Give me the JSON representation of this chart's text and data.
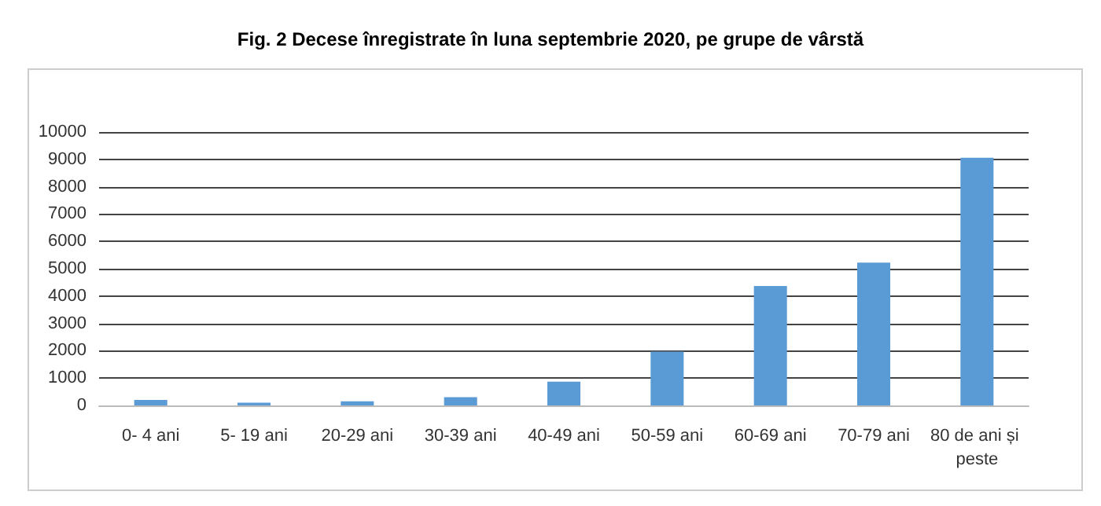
{
  "chart_data": {
    "type": "bar",
    "title": "Fig. 2 Decese înregistrate în luna septembrie 2020, pe grupe de vârstă",
    "categories": [
      "0- 4 ani",
      "5- 19 ani",
      "20-29 ani",
      "30-39 ani",
      "40-49 ani",
      "50-59 ani",
      "60-69 ani",
      "70-79 ani",
      "80 de ani și peste"
    ],
    "values": [
      200,
      100,
      150,
      300,
      870,
      1970,
      4370,
      5220,
      9060
    ],
    "color": "#5b9bd5",
    "ylim": [
      0,
      10000
    ],
    "yticks": [
      0,
      1000,
      2000,
      3000,
      4000,
      5000,
      6000,
      7000,
      8000,
      9000,
      10000
    ],
    "grid": "y"
  }
}
